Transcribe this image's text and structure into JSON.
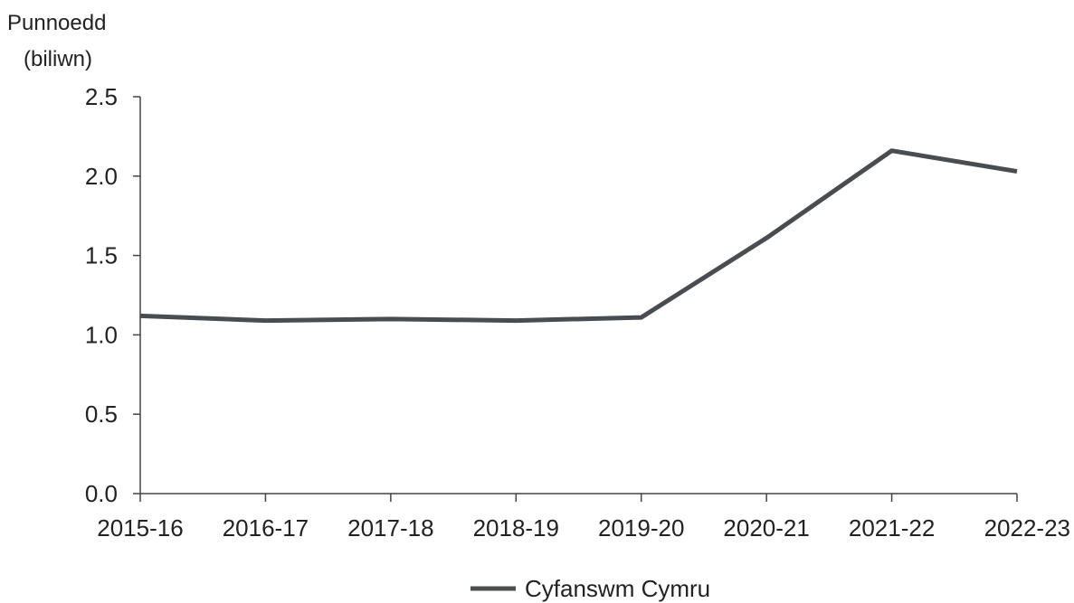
{
  "chart_data": {
    "type": "line",
    "ylabel_lines": [
      "Punnoedd",
      "(biliwn)"
    ],
    "xlabel": "",
    "categories": [
      "2015-16",
      "2016-17",
      "2017-18",
      "2018-19",
      "2019-20",
      "2020-21",
      "2021-22",
      "2022-23"
    ],
    "series": [
      {
        "name": "Cyfanswm Cymru",
        "values": [
          1.12,
          1.09,
          1.1,
          1.09,
          1.11,
          1.61,
          2.16,
          2.03
        ],
        "color": "#4a4d50"
      }
    ],
    "ylim": [
      0,
      2.5
    ],
    "yticks": [
      "0.0",
      "0.5",
      "1.0",
      "1.5",
      "2.0",
      "2.5"
    ],
    "grid": false,
    "legend_position": "bottom-center"
  }
}
